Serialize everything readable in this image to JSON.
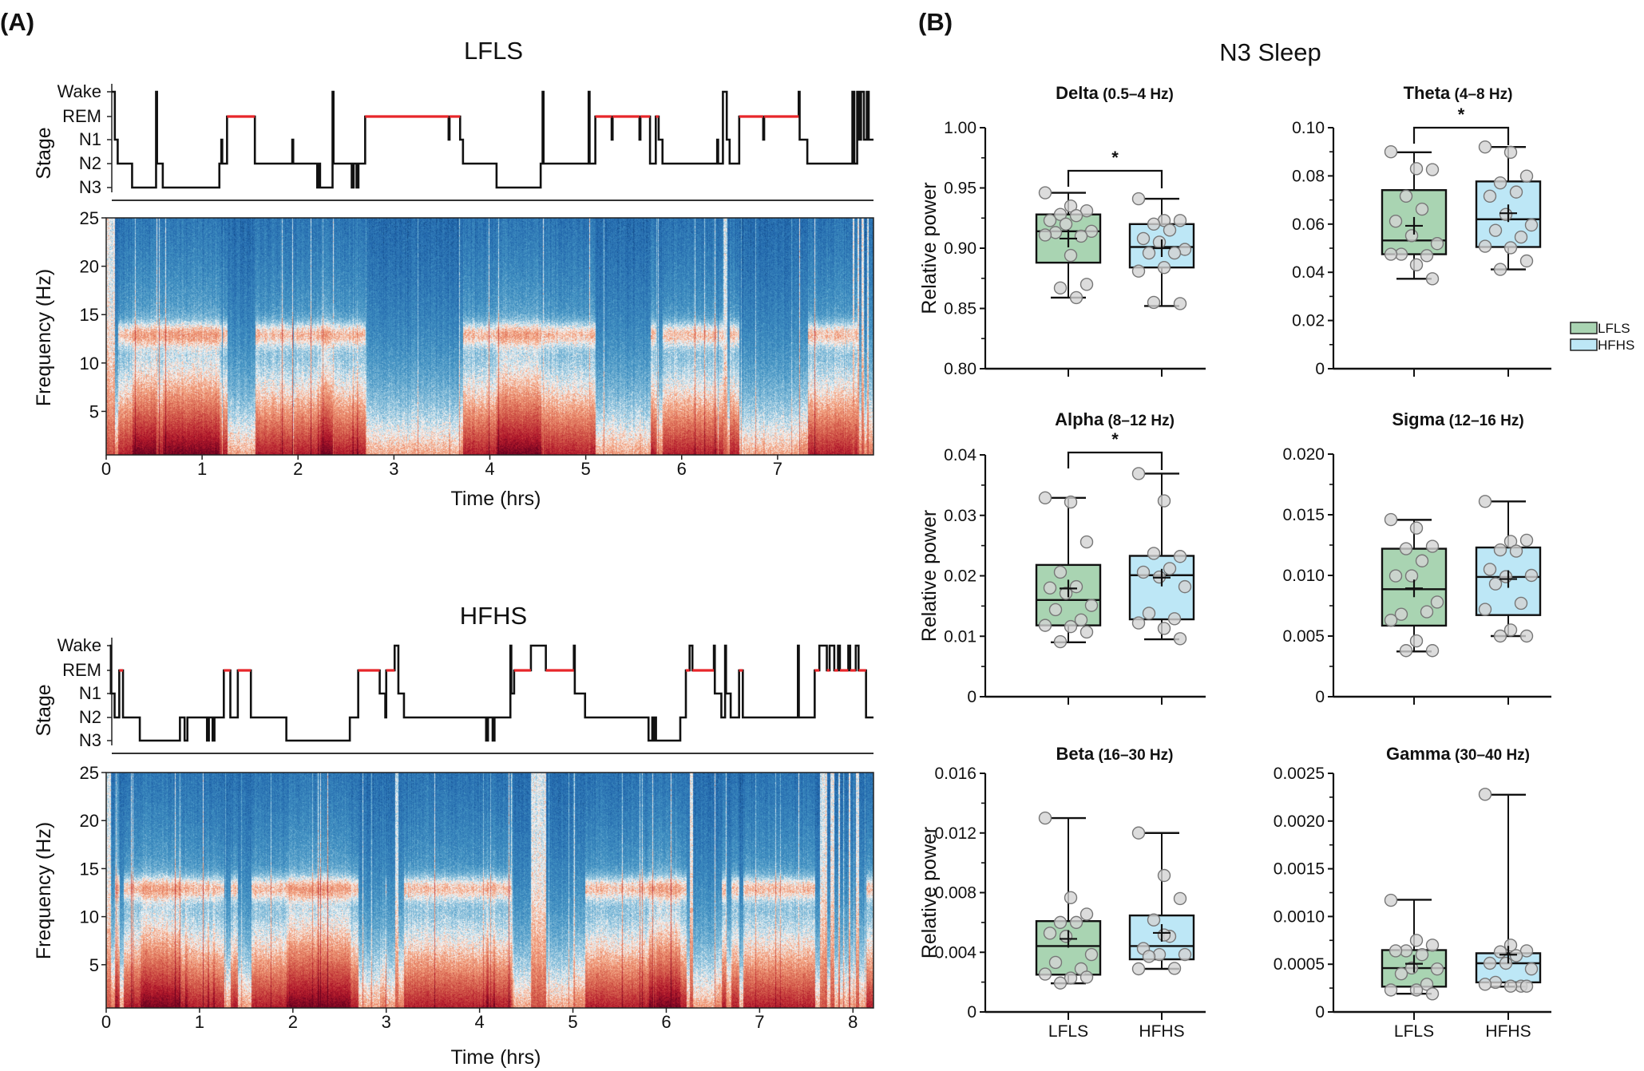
{
  "panel_labels": {
    "a": "(A)",
    "b": "(B)"
  },
  "panel_a": {
    "stage_ylabel": "Stage",
    "freq_ylabel": "Frequency (Hz)",
    "time_xlabel": "Time (hrs)",
    "stages": [
      "Wake",
      "REM",
      "N1",
      "N2",
      "N3"
    ],
    "rem_color": "#e8262a",
    "colormap": "RdBu_r",
    "freq_ticks": [
      5,
      10,
      15,
      20,
      25
    ],
    "freq_range": [
      0.5,
      25
    ],
    "recordings": [
      {
        "title": "LFLS",
        "time_range": [
          0,
          8.0
        ],
        "time_ticks": [
          0,
          1,
          2,
          3,
          4,
          5,
          6,
          7
        ],
        "hypnogram": [
          [
            0,
            "Wake"
          ],
          [
            0.09,
            "N1"
          ],
          [
            0.12,
            "N2"
          ],
          [
            0.27,
            "N3"
          ],
          [
            0.52,
            "Wake"
          ],
          [
            0.53,
            "N2"
          ],
          [
            0.59,
            "N3"
          ],
          [
            1.18,
            "N2"
          ],
          [
            1.2,
            "N1"
          ],
          [
            1.21,
            "N2"
          ],
          [
            1.26,
            "REM"
          ],
          [
            1.55,
            "N2"
          ],
          [
            1.94,
            "N1"
          ],
          [
            1.95,
            "N2"
          ],
          [
            2.2,
            "N3"
          ],
          [
            2.22,
            "N2"
          ],
          [
            2.23,
            "N3"
          ],
          [
            2.36,
            "Wake"
          ],
          [
            2.37,
            "N2"
          ],
          [
            2.56,
            "N3"
          ],
          [
            2.58,
            "N2"
          ],
          [
            2.61,
            "N3"
          ],
          [
            2.63,
            "N2"
          ],
          [
            2.7,
            "REM"
          ],
          [
            3.57,
            "N1"
          ],
          [
            3.58,
            "REM"
          ],
          [
            3.69,
            "N1"
          ],
          [
            3.72,
            "N2"
          ],
          [
            4.07,
            "N3"
          ],
          [
            4.53,
            "N2"
          ],
          [
            4.55,
            "Wake"
          ],
          [
            4.56,
            "N2"
          ],
          [
            5.03,
            "Wake"
          ],
          [
            5.04,
            "N2"
          ],
          [
            5.1,
            "REM"
          ],
          [
            5.27,
            "N1"
          ],
          [
            5.28,
            "REM"
          ],
          [
            5.56,
            "N1"
          ],
          [
            5.57,
            "REM"
          ],
          [
            5.67,
            "N2"
          ],
          [
            5.73,
            "REM"
          ],
          [
            5.76,
            "N1"
          ],
          [
            5.8,
            "N2"
          ],
          [
            6.37,
            "N1"
          ],
          [
            6.38,
            "N2"
          ],
          [
            6.43,
            "Wake"
          ],
          [
            6.47,
            "N1"
          ],
          [
            6.5,
            "N2"
          ],
          [
            6.6,
            "REM"
          ],
          [
            6.85,
            "N1"
          ],
          [
            6.86,
            "REM"
          ],
          [
            7.22,
            "Wake"
          ],
          [
            7.23,
            "N1"
          ],
          [
            7.31,
            "N2"
          ],
          [
            7.78,
            "Wake"
          ],
          [
            7.8,
            "N2"
          ],
          [
            7.83,
            "Wake"
          ],
          [
            7.85,
            "N1"
          ],
          [
            7.87,
            "Wake"
          ],
          [
            7.9,
            "N1"
          ],
          [
            7.93,
            "Wake"
          ],
          [
            7.95,
            "N1"
          ]
        ]
      },
      {
        "title": "HFHS",
        "time_range": [
          0,
          8.22
        ],
        "time_ticks": [
          0,
          1,
          2,
          3,
          4,
          5,
          6,
          7,
          8
        ],
        "hypnogram": [
          [
            0,
            "Wake"
          ],
          [
            0.05,
            "N1"
          ],
          [
            0.09,
            "N2"
          ],
          [
            0.14,
            "REM"
          ],
          [
            0.18,
            "N2"
          ],
          [
            0.36,
            "N3"
          ],
          [
            0.79,
            "N2"
          ],
          [
            0.84,
            "N3"
          ],
          [
            0.87,
            "N2"
          ],
          [
            1.08,
            "N3"
          ],
          [
            1.1,
            "N2"
          ],
          [
            1.14,
            "N3"
          ],
          [
            1.16,
            "N2"
          ],
          [
            1.26,
            "REM"
          ],
          [
            1.33,
            "N2"
          ],
          [
            1.41,
            "REM"
          ],
          [
            1.55,
            "N2"
          ],
          [
            1.93,
            "N3"
          ],
          [
            2.61,
            "N2"
          ],
          [
            2.7,
            "REM"
          ],
          [
            2.93,
            "N1"
          ],
          [
            2.99,
            "N2"
          ],
          [
            3.0,
            "REM"
          ],
          [
            3.09,
            "Wake"
          ],
          [
            3.13,
            "N1"
          ],
          [
            3.19,
            "N2"
          ],
          [
            4.07,
            "N3"
          ],
          [
            4.09,
            "N2"
          ],
          [
            4.14,
            "N3"
          ],
          [
            4.16,
            "N2"
          ],
          [
            4.33,
            "Wake"
          ],
          [
            4.34,
            "N1"
          ],
          [
            4.37,
            "REM"
          ],
          [
            4.55,
            "Wake"
          ],
          [
            4.71,
            "REM"
          ],
          [
            5.01,
            "Wake"
          ],
          [
            5.02,
            "N1"
          ],
          [
            5.13,
            "N2"
          ],
          [
            5.81,
            "N3"
          ],
          [
            5.85,
            "N2"
          ],
          [
            5.86,
            "N3"
          ],
          [
            5.88,
            "N2"
          ],
          [
            5.89,
            "N3"
          ],
          [
            6.15,
            "N2"
          ],
          [
            6.21,
            "REM"
          ],
          [
            6.25,
            "Wake"
          ],
          [
            6.28,
            "REM"
          ],
          [
            6.51,
            "Wake"
          ],
          [
            6.52,
            "N1"
          ],
          [
            6.59,
            "N2"
          ],
          [
            6.63,
            "Wake"
          ],
          [
            6.64,
            "N1"
          ],
          [
            6.69,
            "N2"
          ],
          [
            6.78,
            "REM"
          ],
          [
            6.82,
            "N2"
          ],
          [
            7.41,
            "Wake"
          ],
          [
            7.42,
            "N2"
          ],
          [
            7.59,
            "REM"
          ],
          [
            7.64,
            "Wake"
          ],
          [
            7.72,
            "REM"
          ],
          [
            7.75,
            "Wake"
          ],
          [
            7.8,
            "REM"
          ],
          [
            7.84,
            "Wake"
          ],
          [
            7.86,
            "REM"
          ],
          [
            7.95,
            "Wake"
          ],
          [
            7.97,
            "REM"
          ],
          [
            8.03,
            "Wake"
          ],
          [
            8.06,
            "REM"
          ],
          [
            8.14,
            "N2"
          ]
        ]
      }
    ]
  },
  "panel_b": {
    "title": "N3 Sleep",
    "ylabel": "Relative power",
    "groups": [
      "LFLS",
      "HFHS"
    ],
    "group_colors": {
      "LFLS": "#a9d4b2",
      "HFHS": "#bde7f6"
    },
    "point_color": "#d3d3d3",
    "legend": [
      "LFLS",
      "HFHS"
    ],
    "legend_position": "right of Theta panel"
  },
  "chart_data": [
    {
      "type": "box",
      "title": "Delta",
      "subtitle": "(0.5–4 Hz)",
      "ylim": [
        0.8,
        1.0
      ],
      "yticks": [
        "0.80",
        "0.85",
        "0.90",
        "0.95",
        "1.00"
      ],
      "significance": "*",
      "series": [
        {
          "name": "LFLS",
          "min": 0.859,
          "q1": 0.888,
          "median": 0.914,
          "q3": 0.928,
          "max": 0.946,
          "mean": 0.908,
          "points": [
            0.946,
            0.935,
            0.931,
            0.928,
            0.927,
            0.923,
            0.92,
            0.914,
            0.913,
            0.91,
            0.911,
            0.894,
            0.87,
            0.867,
            0.859
          ]
        },
        {
          "name": "HFHS",
          "min": 0.852,
          "q1": 0.884,
          "median": 0.901,
          "q3": 0.92,
          "max": 0.941,
          "mean": 0.9,
          "points": [
            0.941,
            0.923,
            0.923,
            0.92,
            0.915,
            0.908,
            0.905,
            0.899,
            0.896,
            0.896,
            0.881,
            0.884,
            0.854,
            0.855
          ]
        }
      ]
    },
    {
      "type": "box",
      "title": "Theta",
      "subtitle": "(4–8 Hz)",
      "ylim": [
        0,
        0.1
      ],
      "yticks": [
        "0",
        "0.02",
        "0.04",
        "0.06",
        "0.08",
        "0.10"
      ],
      "significance": "*",
      "series": [
        {
          "name": "LFLS",
          "min": 0.0373,
          "q1": 0.0475,
          "median": 0.0532,
          "q3": 0.0741,
          "max": 0.0898,
          "mean": 0.0593,
          "points": [
            0.09,
            0.083,
            0.0826,
            0.0716,
            0.0662,
            0.0612,
            0.0552,
            0.0519,
            0.0475,
            0.0469,
            0.0475,
            0.0431,
            0.0373
          ]
        },
        {
          "name": "HFHS",
          "min": 0.0412,
          "q1": 0.0505,
          "median": 0.062,
          "q3": 0.0777,
          "max": 0.092,
          "mean": 0.0645,
          "points": [
            0.092,
            0.0898,
            0.0799,
            0.0771,
            0.0733,
            0.0716,
            0.064,
            0.0596,
            0.0574,
            0.0546,
            0.0508,
            0.0502,
            0.0447,
            0.0412
          ]
        }
      ]
    },
    {
      "type": "box",
      "title": "Alpha",
      "subtitle": "(8–12 Hz)",
      "ylim": [
        0,
        0.04
      ],
      "yticks": [
        "0",
        "0.01",
        "0.02",
        "0.03",
        "0.04"
      ],
      "significance": "*",
      "series": [
        {
          "name": "LFLS",
          "min": 0.009,
          "q1": 0.0118,
          "median": 0.016,
          "q3": 0.0218,
          "max": 0.0329,
          "mean": 0.0179,
          "points": [
            0.0329,
            0.0322,
            0.0256,
            0.0206,
            0.0182,
            0.018,
            0.0171,
            0.0151,
            0.0144,
            0.0127,
            0.0118,
            0.0116,
            0.0107,
            0.0091
          ]
        },
        {
          "name": "HFHS",
          "min": 0.0095,
          "q1": 0.0128,
          "median": 0.0201,
          "q3": 0.0233,
          "max": 0.0369,
          "mean": 0.0197,
          "points": [
            0.0369,
            0.0324,
            0.0232,
            0.0237,
            0.0212,
            0.0206,
            0.0198,
            0.0182,
            0.0138,
            0.0129,
            0.0122,
            0.0113,
            0.0096
          ]
        }
      ]
    },
    {
      "type": "box",
      "title": "Sigma",
      "subtitle": "(12–16 Hz)",
      "ylim": [
        0,
        0.02
      ],
      "yticks": [
        "0",
        "0.005",
        "0.010",
        "0.015",
        "0.020"
      ],
      "significance": "",
      "series": [
        {
          "name": "LFLS",
          "min": 0.00373,
          "q1": 0.00586,
          "median": 0.00886,
          "q3": 0.0122,
          "max": 0.01458,
          "mean": 0.00893,
          "points": [
            0.0146,
            0.0139,
            0.0124,
            0.0122,
            0.0112,
            0.00996,
            0.00996,
            0.0078,
            0.0068,
            0.007,
            0.0063,
            0.0046,
            0.0038,
            0.0038
          ]
        },
        {
          "name": "HFHS",
          "min": 0.005,
          "q1": 0.00673,
          "median": 0.00987,
          "q3": 0.0123,
          "max": 0.0161,
          "mean": 0.0097,
          "points": [
            0.0161,
            0.0128,
            0.0129,
            0.0121,
            0.012,
            0.0105,
            0.0099,
            0.01,
            0.0093,
            0.0077,
            0.0072,
            0.0055,
            0.005,
            0.005
          ]
        }
      ]
    },
    {
      "type": "box",
      "title": "Beta",
      "subtitle": "(16–30 Hz)",
      "ylim": [
        0,
        0.016
      ],
      "yticks": [
        "0",
        "0.004",
        "0.008",
        "0.012",
        "0.016"
      ],
      "significance": "",
      "series": [
        {
          "name": "LFLS",
          "min": 0.00192,
          "q1": 0.0025,
          "median": 0.00442,
          "q3": 0.00609,
          "max": 0.013,
          "mean": 0.0049,
          "points": [
            0.013,
            0.00766,
            0.00656,
            0.006,
            0.006,
            0.00528,
            0.00507,
            0.00385,
            0.00332,
            0.00289,
            0.00254,
            0.00227,
            0.00233,
            0.00194
          ]
        },
        {
          "name": "HFHS",
          "min": 0.00289,
          "q1": 0.00353,
          "median": 0.00442,
          "q3": 0.00647,
          "max": 0.012,
          "mean": 0.0053,
          "points": [
            0.012,
            0.00915,
            0.0076,
            0.00617,
            0.00507,
            0.00425,
            0.00385,
            0.00385,
            0.00372,
            0.00292,
            0.00289,
            0.00516
          ]
        }
      ]
    },
    {
      "type": "box",
      "title": "Gamma",
      "subtitle": "(30–40 Hz)",
      "ylim": [
        0,
        0.0025
      ],
      "yticks": [
        "0",
        "0.0005",
        "0.0010",
        "0.0015",
        "0.0020",
        "0.0025"
      ],
      "significance": "",
      "series": [
        {
          "name": "LFLS",
          "min": 0.000191,
          "q1": 0.000265,
          "median": 0.000459,
          "q3": 0.000648,
          "max": 0.001175,
          "mean": 0.000505,
          "points": [
            0.00117,
            0.00075,
            0.0007,
            0.00064,
            0.0006,
            0.00064,
            0.00046,
            0.00045,
            0.0004,
            0.00029,
            0.00023,
            0.00023,
            0.00019
          ]
        },
        {
          "name": "HFHS",
          "min": 0.000265,
          "q1": 0.00031,
          "median": 0.00051,
          "q3": 0.000615,
          "max": 0.002276,
          "mean": 0.0006,
          "points": [
            0.00228,
            0.0007,
            0.00064,
            0.00063,
            0.00059,
            0.00051,
            0.00051,
            0.00045,
            0.00031,
            0.00027,
            0.00029,
            0.00027,
            0.00027
          ]
        }
      ]
    }
  ]
}
